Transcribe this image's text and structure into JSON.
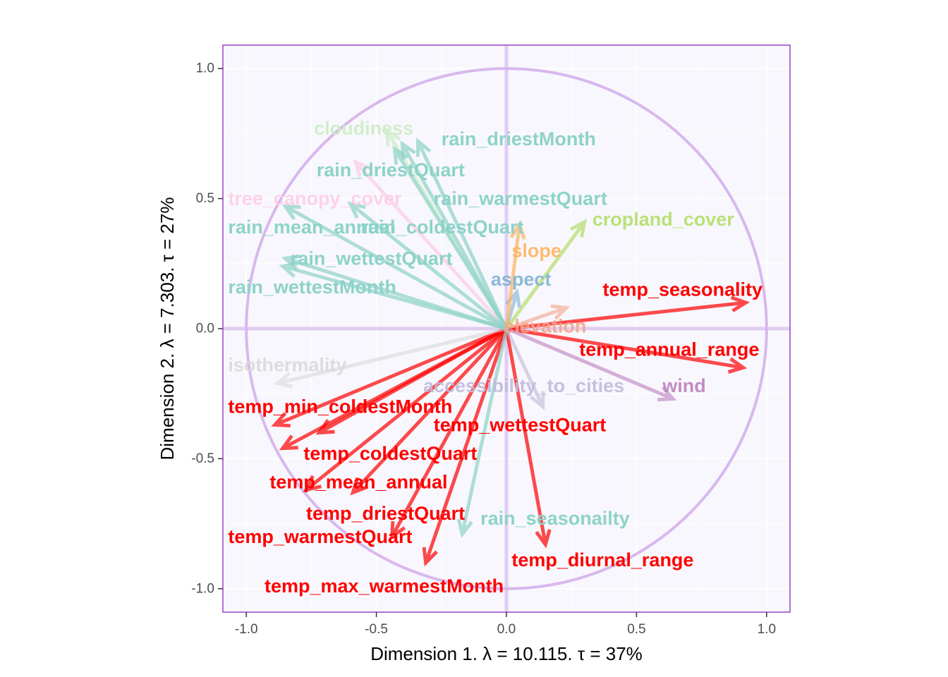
{
  "chart_data": {
    "type": "scatter",
    "subtype": "pca-correlation-circle",
    "xlabel": "Dimension 1.   λ = 10.115.  τ = 37%",
    "ylabel": "Dimension 2.   λ = 7.303.  τ = 27%",
    "xlim": [
      -1.09,
      1.09
    ],
    "ylim": [
      -1.09,
      1.09
    ],
    "x_ticks": [
      -1.0,
      -0.5,
      0.0,
      0.5,
      1.0
    ],
    "y_ticks": [
      -1.0,
      -0.5,
      0.0,
      0.5,
      1.0
    ],
    "x_tick_labels": [
      "-1.0",
      "-0.5",
      "0.0",
      "0.5",
      "1.0"
    ],
    "y_tick_labels": [
      "-1.0",
      "-0.5",
      "0.0",
      "0.5",
      "1.0"
    ],
    "grid": true,
    "unit_circle": true,
    "colors": {
      "panel_background": "#f8f7fd",
      "panel_border": "#9a44c8",
      "circle": "#d8b8ee",
      "zero_lines": "#e1cdf1",
      "grid": "#ffffff"
    },
    "vectors": [
      {
        "name": "temp_seasonality",
        "x": 0.92,
        "y": 0.1,
        "color": "#ff0000",
        "opacity": 0.7,
        "label_x": 0.37,
        "label_y": 0.15,
        "label_opacity": 1
      },
      {
        "name": "temp_annual_range",
        "x": 0.91,
        "y": -0.15,
        "color": "#ff0000",
        "opacity": 0.7,
        "label_x": 0.28,
        "label_y": -0.08,
        "label_opacity": 1
      },
      {
        "name": "temp_min_coldestMonth",
        "x": -0.89,
        "y": -0.37,
        "color": "#ff0000",
        "opacity": 0.7,
        "label_x": -1.07,
        "label_y": -0.3,
        "label_opacity": 1
      },
      {
        "name": "temp_coldestQuart",
        "x": -0.86,
        "y": -0.46,
        "color": "#ff0000",
        "opacity": 0.7,
        "label_x": -0.78,
        "label_y": -0.48,
        "label_opacity": 1
      },
      {
        "name": "temp_wettestQuart",
        "x": -0.72,
        "y": -0.4,
        "color": "#ff0000",
        "opacity": 0.7,
        "label_x": -0.28,
        "label_y": -0.37,
        "label_opacity": 1
      },
      {
        "name": "temp_mean_annual",
        "x": -0.77,
        "y": -0.62,
        "color": "#ff0000",
        "opacity": 0.7,
        "label_x": -0.91,
        "label_y": -0.59,
        "label_opacity": 1
      },
      {
        "name": "temp_driestQuart",
        "x": -0.59,
        "y": -0.63,
        "color": "#ff0000",
        "opacity": 0.7,
        "label_x": -0.77,
        "label_y": -0.71,
        "label_opacity": 1
      },
      {
        "name": "temp_warmestQuart",
        "x": -0.44,
        "y": -0.8,
        "color": "#ff0000",
        "opacity": 0.7,
        "label_x": -1.07,
        "label_y": -0.8,
        "label_opacity": 1
      },
      {
        "name": "temp_max_warmestMonth",
        "x": -0.31,
        "y": -0.9,
        "color": "#ff0000",
        "opacity": 0.7,
        "label_x": -0.93,
        "label_y": -0.99,
        "label_opacity": 1
      },
      {
        "name": "temp_diurnal_range",
        "x": 0.15,
        "y": -0.83,
        "color": "#ff0000",
        "opacity": 0.7,
        "label_x": 0.02,
        "label_y": -0.89,
        "label_opacity": 1
      },
      {
        "name": "elevation",
        "x": 0.23,
        "y": 0.08,
        "color": "#f4a58a",
        "opacity": 0.6,
        "label_x": -0.01,
        "label_y": 0.01,
        "label_opacity": 0.9
      },
      {
        "name": "rain_seasonailty",
        "x": -0.17,
        "y": -0.79,
        "color": "#8dd3c7",
        "opacity": 0.7,
        "label_x": -0.1,
        "label_y": -0.73,
        "label_opacity": 1
      },
      {
        "name": "wind",
        "x": 0.64,
        "y": -0.27,
        "color": "#bc80bd",
        "opacity": 0.6,
        "label_x": 0.6,
        "label_y": -0.22,
        "label_opacity": 0.9
      },
      {
        "name": "accessibility_to_cities",
        "x": 0.14,
        "y": -0.3,
        "color": "#bebada",
        "opacity": 0.6,
        "label_x": -0.32,
        "label_y": -0.22,
        "label_opacity": 0.9
      },
      {
        "name": "isothermality",
        "x": -0.88,
        "y": -0.21,
        "color": "#d9d9d9",
        "opacity": 0.6,
        "label_x": -1.07,
        "label_y": -0.14,
        "label_opacity": 0.9
      },
      {
        "name": "aspect",
        "x": 0.04,
        "y": 0.14,
        "color": "#80b1d3",
        "opacity": 0.6,
        "label_x": -0.06,
        "label_y": 0.19,
        "label_opacity": 0.9
      },
      {
        "name": "slope",
        "x": 0.05,
        "y": 0.4,
        "color": "#fdb462",
        "opacity": 0.7,
        "label_x": 0.02,
        "label_y": 0.3,
        "label_opacity": 0.9
      },
      {
        "name": "cropland_cover",
        "x": 0.3,
        "y": 0.41,
        "color": "#b3de69",
        "opacity": 0.7,
        "label_x": 0.33,
        "label_y": 0.42,
        "label_opacity": 0.9
      },
      {
        "name": "cloudiness",
        "x": -0.46,
        "y": 0.76,
        "color": "#ccebc5",
        "opacity": 0.7,
        "label_x": -0.74,
        "label_y": 0.77,
        "label_opacity": 0.9
      },
      {
        "name": "rain_driestMonth",
        "x": -0.34,
        "y": 0.72,
        "color": "#8dd3c7",
        "opacity": 0.7,
        "label_x": -0.25,
        "label_y": 0.73,
        "label_opacity": 1
      },
      {
        "name": "rain_driestQuart",
        "x": -0.4,
        "y": 0.71,
        "color": "#8dd3c7",
        "opacity": 0.7,
        "label_x": -0.73,
        "label_y": 0.61,
        "label_opacity": 1
      },
      {
        "name": "tree_canopy_cover",
        "x": -0.58,
        "y": 0.64,
        "color": "#fccde5",
        "opacity": 0.7,
        "label_x": -1.07,
        "label_y": 0.5,
        "label_opacity": 0.9
      },
      {
        "name": "rain_warmestQuart",
        "x": -0.43,
        "y": 0.69,
        "color": "#8dd3c7",
        "opacity": 0.7,
        "label_x": -0.28,
        "label_y": 0.5,
        "label_opacity": 1
      },
      {
        "name": "rain_mean_annual",
        "x": -0.85,
        "y": 0.47,
        "color": "#8dd3c7",
        "opacity": 0.7,
        "label_x": -1.07,
        "label_y": 0.39,
        "label_opacity": 1
      },
      {
        "name": "rain_coldestQuart",
        "x": -0.6,
        "y": 0.48,
        "color": "#8dd3c7",
        "opacity": 0.7,
        "label_x": -0.56,
        "label_y": 0.39,
        "label_opacity": 1
      },
      {
        "name": "rain_wettestQuart",
        "x": -0.85,
        "y": 0.27,
        "color": "#8dd3c7",
        "opacity": 0.7,
        "label_x": -0.83,
        "label_y": 0.27,
        "label_opacity": 1
      },
      {
        "name": "rain_wettestMonth",
        "x": -0.86,
        "y": 0.24,
        "color": "#8dd3c7",
        "opacity": 0.7,
        "label_x": -1.07,
        "label_y": 0.16,
        "label_opacity": 1
      }
    ]
  }
}
